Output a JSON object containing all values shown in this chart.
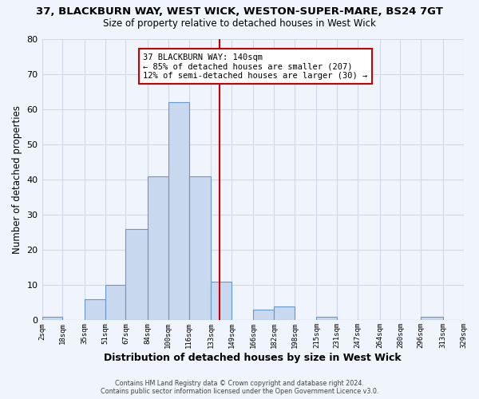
{
  "title": "37, BLACKBURN WAY, WEST WICK, WESTON-SUPER-MARE, BS24 7GT",
  "subtitle": "Size of property relative to detached houses in West Wick",
  "xlabel": "Distribution of detached houses by size in West Wick",
  "ylabel": "Number of detached properties",
  "bar_color": "#c8d8ee",
  "bar_edge_color": "#6699cc",
  "bin_edges": [
    2,
    18,
    35,
    51,
    67,
    84,
    100,
    116,
    133,
    149,
    166,
    182,
    198,
    215,
    231,
    247,
    264,
    280,
    296,
    313,
    329
  ],
  "bar_heights": [
    1,
    0,
    6,
    10,
    26,
    41,
    62,
    41,
    11,
    0,
    3,
    4,
    0,
    1,
    0,
    0,
    0,
    0,
    1,
    0
  ],
  "property_line_x": 140,
  "property_line_color": "#cc0000",
  "annotation_title": "37 BLACKBURN WAY: 140sqm",
  "annotation_line1": "← 85% of detached houses are smaller (207)",
  "annotation_line2": "12% of semi-detached houses are larger (30) →",
  "annotation_box_color": "#ffffff",
  "annotation_box_edge": "#cc0000",
  "ylim": [
    0,
    80
  ],
  "yticks": [
    0,
    10,
    20,
    30,
    40,
    50,
    60,
    70,
    80
  ],
  "xtick_labels": [
    "2sqm",
    "18sqm",
    "35sqm",
    "51sqm",
    "67sqm",
    "84sqm",
    "100sqm",
    "116sqm",
    "133sqm",
    "149sqm",
    "166sqm",
    "182sqm",
    "198sqm",
    "215sqm",
    "231sqm",
    "247sqm",
    "264sqm",
    "280sqm",
    "296sqm",
    "313sqm",
    "329sqm"
  ],
  "footer1": "Contains HM Land Registry data © Crown copyright and database right 2024.",
  "footer2": "Contains public sector information licensed under the Open Government Licence v3.0.",
  "grid_color": "#d0d8e8",
  "background_color": "#f0f4fc"
}
